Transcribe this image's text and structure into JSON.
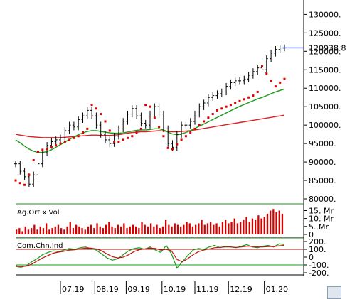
{
  "chart_data": [
    {
      "type": "line",
      "panel": "price",
      "ylim": [
        80000,
        132000
      ],
      "yticks": [
        "130000.",
        "125000.",
        "120000.",
        "115000.",
        "110000.",
        "105000.",
        "100000.",
        "95000.",
        "90000.",
        "85000.",
        "80000."
      ],
      "ytick_values": [
        130000,
        125000,
        120000,
        115000,
        110000,
        105000,
        100000,
        95000,
        90000,
        85000,
        80000
      ],
      "last_value_label": "120938.8",
      "last_value": 120938.8,
      "x": [
        0,
        6,
        12,
        18,
        24,
        30,
        36,
        42,
        48,
        54,
        60,
        66,
        72,
        78,
        84,
        90,
        96,
        102,
        108,
        114,
        120,
        126,
        132,
        138,
        144,
        150,
        156,
        162,
        168,
        174,
        180,
        186,
        192,
        198,
        204,
        210,
        216,
        222,
        228,
        234,
        240,
        246,
        252,
        258,
        264,
        270,
        276,
        282,
        288,
        294,
        300,
        306,
        312,
        318,
        324,
        330,
        336,
        342,
        348,
        354,
        360
      ],
      "series": [
        {
          "role": "close",
          "color": "#000000",
          "values": [
            89500,
            87500,
            86000,
            84000,
            86500,
            89500,
            92500,
            94500,
            95500,
            96000,
            96500,
            98500,
            100000,
            99500,
            101500,
            102500,
            104000,
            102500,
            100000,
            97500,
            96000,
            95000,
            97000,
            99000,
            101000,
            103000,
            104500,
            102500,
            100500,
            100000,
            103000,
            105000,
            103000,
            99000,
            95000,
            94000,
            97500,
            100000,
            100000,
            101000,
            103000,
            105000,
            106000,
            107500,
            108000,
            108500,
            109000,
            110500,
            111500,
            112000,
            112000,
            112500,
            113500,
            114500,
            115500,
            115000,
            118000,
            119500,
            120500,
            120900,
            120938.8
          ]
        },
        {
          "role": "long-ma",
          "color": "#e02020",
          "values": [
            97500,
            97300,
            97100,
            96900,
            96800,
            96700,
            96600,
            96600,
            96600,
            96600,
            96600,
            96700,
            96800,
            96900,
            97000,
            97100,
            97200,
            97300,
            97300,
            97200,
            97200,
            97200,
            97300,
            97400,
            97600,
            97800,
            98000,
            98100,
            98200,
            98200,
            98300,
            98400,
            98500,
            98400,
            98300,
            98200,
            98200,
            98300,
            98400,
            98500,
            98700,
            98900,
            99100,
            99300,
            99500,
            99700,
            99900,
            100100,
            100300,
            100500,
            100700,
            100900,
            101100,
            101300,
            101500,
            101700,
            101900,
            102100,
            102300,
            102500,
            102700
          ]
        },
        {
          "role": "mid-ma",
          "color": "#1a9a1a",
          "values": [
            96000,
            95200,
            94300,
            93500,
            92900,
            92600,
            92600,
            92800,
            93300,
            94000,
            94700,
            95400,
            96100,
            96800,
            97400,
            97900,
            98300,
            98500,
            98500,
            98300,
            98100,
            97900,
            97800,
            97800,
            97900,
            98100,
            98400,
            98600,
            98700,
            98700,
            98800,
            99000,
            99000,
            98700,
            98100,
            97600,
            97400,
            97600,
            98000,
            98500,
            99100,
            99700,
            100300,
            100900,
            101500,
            102100,
            102700,
            103300,
            103900,
            104500,
            105100,
            105600,
            106100,
            106600,
            107100,
            107500,
            108000,
            108500,
            109000,
            109400,
            109800
          ]
        }
      ],
      "sar": {
        "color": "#e00000",
        "values": [
          85000,
          84300,
          83800,
          86500,
          90500,
          92800,
          93300,
          93500,
          94000,
          94500,
          95000,
          95500,
          96000,
          96500,
          97000,
          98000,
          99000,
          105500,
          104500,
          103000,
          101000,
          98500,
          95500,
          95500,
          96000,
          96500,
          97000,
          98000,
          99000,
          105500,
          105000,
          102000,
          99500,
          97000,
          93800,
          93500,
          94800,
          96000,
          97000,
          98000,
          99000,
          100000,
          101000,
          102000,
          103000,
          104000,
          104500,
          105000,
          105500,
          106000,
          106500,
          107000,
          107500,
          108000,
          109000,
          116000,
          114000,
          112000,
          110500,
          111500,
          112500
        ]
      },
      "xticks": [
        "07.19",
        "08.19",
        "09.19",
        "10.19",
        "11.19",
        "12.19",
        "01.20"
      ],
      "xtick_positions": [
        60,
        106,
        148,
        196,
        240,
        285,
        333
      ]
    },
    {
      "type": "bar",
      "panel": "volume",
      "title": "Ag.Ort x Vol",
      "color": "#d40000",
      "ylim": [
        0,
        17
      ],
      "yticks": [
        "15. Mr",
        "10. Mr",
        "5. Mr",
        "0"
      ],
      "ytick_values": [
        15,
        10,
        5,
        0
      ],
      "values": [
        3,
        4,
        2,
        5,
        3,
        4,
        6,
        3,
        5,
        4,
        7,
        3,
        4,
        5,
        6,
        4,
        3,
        5,
        8,
        4,
        6,
        5,
        4,
        3,
        5,
        6,
        4,
        7,
        5,
        4,
        6,
        8,
        5,
        4,
        6,
        5,
        7,
        4,
        5,
        6,
        5,
        4,
        8,
        6,
        5,
        7,
        5,
        6,
        4,
        5,
        9,
        6,
        5,
        7,
        6,
        5,
        6,
        8,
        7,
        5,
        6,
        7,
        9,
        6,
        7,
        8,
        6,
        7,
        5,
        8,
        9,
        7,
        8,
        10,
        7,
        8,
        9,
        11,
        8,
        10,
        9,
        12,
        10,
        11,
        13,
        15,
        16,
        14,
        15,
        13
      ]
    },
    {
      "type": "line",
      "panel": "cci",
      "title": "Com.Chn.Ind",
      "ylim": [
        -200,
        200
      ],
      "yticks": [
        "200.",
        "100.",
        "0",
        "-100.",
        "-200."
      ],
      "ytick_values": [
        200,
        100,
        0,
        -100,
        -200
      ],
      "reference_levels": [
        {
          "value": 100,
          "color": "#a01010"
        },
        {
          "value": -100,
          "color": "#1a9a1a"
        }
      ],
      "series": [
        {
          "role": "cci",
          "color": "#1a9a1a",
          "values": [
            -120,
            -130,
            -110,
            -60,
            -20,
            30,
            60,
            80,
            70,
            90,
            110,
            100,
            120,
            130,
            110,
            90,
            40,
            -10,
            -40,
            -20,
            30,
            80,
            110,
            120,
            100,
            130,
            90,
            60,
            150,
            40,
            -140,
            -60,
            20,
            90,
            110,
            100,
            130,
            150,
            120,
            140,
            130,
            120,
            140,
            160,
            130,
            120,
            140,
            150,
            130,
            170,
            160
          ]
        },
        {
          "role": "signal",
          "color": "#c01010",
          "values": [
            -110,
            -120,
            -115,
            -90,
            -50,
            -10,
            20,
            50,
            65,
            75,
            90,
            95,
            105,
            115,
            115,
            105,
            80,
            40,
            5,
            -10,
            0,
            30,
            70,
            95,
            105,
            115,
            110,
            90,
            100,
            80,
            -30,
            -60,
            -20,
            30,
            70,
            90,
            105,
            120,
            125,
            130,
            130,
            125,
            130,
            140,
            140,
            130,
            130,
            135,
            135,
            145,
            150
          ]
        }
      ]
    }
  ]
}
